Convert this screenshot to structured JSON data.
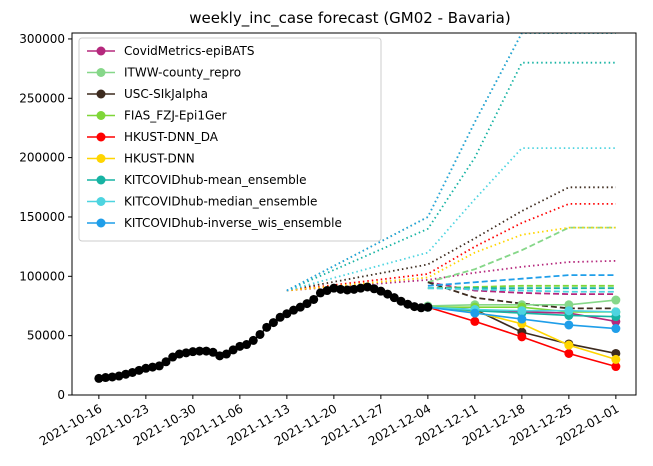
{
  "chart_data": {
    "type": "line",
    "title": "weekly_inc_case forecast (GM02 - Bavaria)",
    "xlabel": "",
    "ylabel": "",
    "x_range": [
      "2021-10-12",
      "2022-01-04"
    ],
    "ylim": [
      0,
      305000
    ],
    "x_ticks": [
      "2021-10-16",
      "2021-10-23",
      "2021-10-30",
      "2021-11-06",
      "2021-11-13",
      "2021-11-20",
      "2021-11-27",
      "2021-12-04",
      "2021-12-11",
      "2021-12-18",
      "2021-12-25",
      "2022-01-01"
    ],
    "y_ticks": [
      0,
      50000,
      100000,
      150000,
      200000,
      250000,
      300000
    ],
    "y_tick_labels": [
      "0",
      "50000",
      "100000",
      "150000",
      "200000",
      "250000",
      "300000"
    ],
    "grid": false,
    "legend_position": "top-left",
    "observed": {
      "color": "#000000",
      "x": [
        "2021-10-16",
        "2021-10-17",
        "2021-10-18",
        "2021-10-19",
        "2021-10-20",
        "2021-10-21",
        "2021-10-22",
        "2021-10-23",
        "2021-10-24",
        "2021-10-25",
        "2021-10-26",
        "2021-10-27",
        "2021-10-28",
        "2021-10-29",
        "2021-10-30",
        "2021-10-31",
        "2021-11-01",
        "2021-11-02",
        "2021-11-03",
        "2021-11-04",
        "2021-11-05",
        "2021-11-06",
        "2021-11-07",
        "2021-11-08",
        "2021-11-09",
        "2021-11-10",
        "2021-11-11",
        "2021-11-12",
        "2021-11-13",
        "2021-11-14",
        "2021-11-15",
        "2021-11-16",
        "2021-11-17",
        "2021-11-18",
        "2021-11-19",
        "2021-11-20",
        "2021-11-21",
        "2021-11-22",
        "2021-11-23",
        "2021-11-24",
        "2021-11-25",
        "2021-11-26",
        "2021-11-27",
        "2021-11-28",
        "2021-11-29",
        "2021-11-30",
        "2021-12-01",
        "2021-12-02",
        "2021-12-03",
        "2021-12-04"
      ],
      "y": [
        14000,
        14700,
        15200,
        16000,
        17500,
        19000,
        20800,
        22500,
        23500,
        24500,
        28000,
        32000,
        34500,
        35500,
        36500,
        37000,
        37000,
        36000,
        33000,
        34500,
        38000,
        41000,
        42500,
        46000,
        51000,
        57000,
        61000,
        65500,
        68500,
        71500,
        74000,
        77000,
        80500,
        86000,
        88000,
        90000,
        89000,
        88500,
        89000,
        90000,
        91000,
        89500,
        87500,
        85000,
        82000,
        79000,
        76500,
        74500,
        73500,
        74000
      ]
    },
    "series": [
      {
        "name": "CovidMetrics-epiBATS",
        "color": "#b5287d",
        "median": {
          "x": [
            "2021-12-04",
            "2021-12-11",
            "2021-12-18",
            "2021-12-25",
            "2022-01-01"
          ],
          "y": [
            74000,
            71000,
            70000,
            69000,
            62000
          ]
        },
        "forecasts": [
          {
            "dash": "dash",
            "y": [
              95000,
              88000,
              86000,
              85000,
              85000
            ]
          },
          {
            "dash": "dot",
            "y": [
              97000,
              103000,
              108000,
              112000,
              113000
            ]
          }
        ]
      },
      {
        "name": "ITWW-county_repro",
        "color": "#86d789",
        "median": {
          "x": [
            "2021-12-04",
            "2021-12-11",
            "2021-12-18",
            "2021-12-25",
            "2022-01-01"
          ],
          "y": [
            75000,
            76000,
            76000,
            76000,
            80000
          ]
        },
        "forecasts": [
          {
            "dash": "dash",
            "y": [
              95000,
              106000,
              122000,
              141000,
              141000
            ]
          }
        ]
      },
      {
        "name": "USC-SIkJalpha",
        "color": "#3d2b1f",
        "median": {
          "x": [
            "2021-12-04",
            "2021-12-11",
            "2021-12-18",
            "2021-12-25",
            "2022-01-01"
          ],
          "y": [
            74000,
            72000,
            53000,
            43000,
            35000
          ]
        },
        "forecasts": [
          {
            "dash": "dash",
            "y": [
              95000,
              82000,
              77000,
              73000,
              73000
            ]
          },
          {
            "dash": "dot",
            "y": [
              110000,
              132000,
              155000,
              175000,
              175000
            ]
          }
        ]
      },
      {
        "name": "FIAS_FZJ-Epi1Ger",
        "color": "#7fd638",
        "median": {
          "x": [
            "2021-12-04",
            "2021-12-11",
            "2021-12-18",
            "2021-12-25",
            "2022-01-01"
          ],
          "y": [
            74000,
            74000,
            74000,
            70000,
            70000
          ]
        },
        "forecasts": [
          {
            "dash": "dash",
            "y": [
              90000,
              91000,
              92000,
              92000,
              92000
            ]
          },
          {
            "dash": "dot",
            "y": [
              150000,
              230000,
              305000,
              305000,
              305000
            ]
          }
        ]
      },
      {
        "name": "HKUST-DNN_DA",
        "color": "#ff0000",
        "median": {
          "x": [
            "2021-12-04",
            "2021-12-11",
            "2021-12-18",
            "2021-12-25",
            "2022-01-01"
          ],
          "y": [
            74000,
            62000,
            49000,
            35000,
            24000
          ]
        },
        "forecasts": [
          {
            "dash": "dot",
            "y": [
              102000,
              125000,
              145000,
              161000,
              161000
            ]
          }
        ]
      },
      {
        "name": "HKUST-DNN",
        "color": "#ffd500",
        "median": {
          "x": [
            "2021-12-04",
            "2021-12-11",
            "2021-12-18",
            "2021-12-25",
            "2022-01-01"
          ],
          "y": [
            74000,
            70000,
            60000,
            42000,
            30000
          ]
        },
        "forecasts": [
          {
            "dash": "dot",
            "y": [
              99000,
              120000,
              135000,
              141000,
              141000
            ]
          }
        ]
      },
      {
        "name": "KITCOVIDhub-mean_ensemble",
        "color": "#17b3a3",
        "median": {
          "x": [
            "2021-12-04",
            "2021-12-11",
            "2021-12-18",
            "2021-12-25",
            "2022-01-01"
          ],
          "y": [
            74000,
            71000,
            69000,
            67000,
            66000
          ]
        },
        "forecasts": [
          {
            "dash": "dash",
            "y": [
              90000,
              90000,
              90000,
              90000,
              90000
            ]
          },
          {
            "dash": "dot",
            "y": [
              140000,
              200000,
              280000,
              280000,
              280000
            ]
          }
        ]
      },
      {
        "name": "KITCOVIDhub-median_ensemble",
        "color": "#4dd4e0",
        "median": {
          "x": [
            "2021-12-04",
            "2021-12-11",
            "2021-12-18",
            "2021-12-25",
            "2022-01-01"
          ],
          "y": [
            74000,
            72000,
            71000,
            71000,
            70000
          ]
        },
        "forecasts": [
          {
            "dash": "dash",
            "y": [
              90000,
              89000,
              88000,
              87000,
              87000
            ]
          },
          {
            "dash": "dot",
            "y": [
              120000,
              165000,
              208000,
              208000,
              208000
            ]
          }
        ]
      },
      {
        "name": "KITCOVIDhub-inverse_wis_ensemble",
        "color": "#1f9ee9",
        "median": {
          "x": [
            "2021-12-04",
            "2021-12-11",
            "2021-12-18",
            "2021-12-25",
            "2022-01-01"
          ],
          "y": [
            74000,
            69000,
            64000,
            59000,
            56000
          ]
        },
        "forecasts": [
          {
            "dash": "dash",
            "y": [
              92000,
              95000,
              98000,
              101000,
              101000
            ]
          },
          {
            "dash": "dot",
            "y": [
              150000,
              230000,
              305000,
              305000,
              305000
            ]
          }
        ]
      }
    ]
  }
}
